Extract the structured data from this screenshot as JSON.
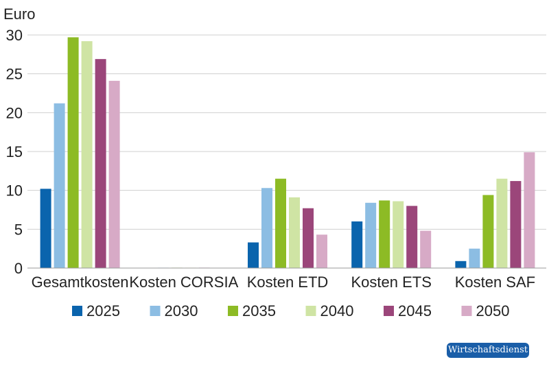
{
  "chart_data": {
    "type": "bar",
    "ylabel": "Euro",
    "ylim": [
      0,
      30
    ],
    "yticks": [
      0,
      5,
      10,
      15,
      20,
      25,
      30
    ],
    "grid": true,
    "legend": "bottom",
    "categories": [
      "Gesamtkosten",
      "Kosten CORSIA",
      "Kosten ETD",
      "Kosten ETS",
      "Kosten SAF"
    ],
    "series": [
      {
        "name": "2025",
        "color": "#0a64ad",
        "values": [
          10.2,
          0.0,
          3.3,
          6.0,
          0.9
        ]
      },
      {
        "name": "2030",
        "color": "#8cbde3",
        "values": [
          21.2,
          0.05,
          10.3,
          8.4,
          2.5
        ]
      },
      {
        "name": "2035",
        "color": "#8dbb25",
        "values": [
          29.7,
          0.05,
          11.5,
          8.7,
          9.4
        ]
      },
      {
        "name": "2040",
        "color": "#cfe4a4",
        "values": [
          29.2,
          0.05,
          9.1,
          8.6,
          11.5
        ]
      },
      {
        "name": "2045",
        "color": "#9b467a",
        "values": [
          26.9,
          0.05,
          7.7,
          8.0,
          11.2
        ]
      },
      {
        "name": "2050",
        "color": "#d7aac6",
        "values": [
          24.1,
          0.0,
          4.3,
          4.8,
          14.9
        ]
      }
    ]
  },
  "source_badge": "Wirtschaftsdienst"
}
